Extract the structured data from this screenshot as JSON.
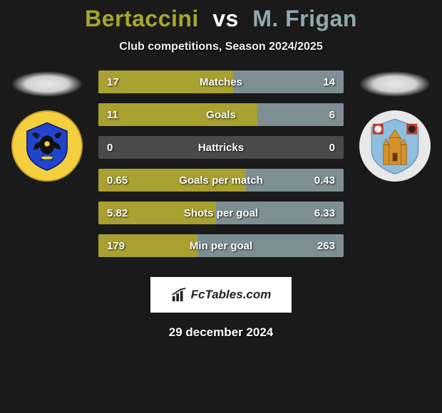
{
  "title": {
    "player1": "Bertaccini",
    "vs": "vs",
    "player2": "M. Frigan",
    "p1_color": "#a8a62f",
    "p2_color": "#90a9ae"
  },
  "subtitle": "Club competitions, Season 2024/2025",
  "colors": {
    "bar_left": "#a8a030",
    "bar_right": "#7d8f93",
    "bar_bg": "#4a4a4a",
    "page_bg": "#1a1a1a"
  },
  "crest_left": {
    "bg": "#f4d03f",
    "shield": "#2244cc",
    "accent": "#f4d03f"
  },
  "crest_right": {
    "bg": "#e8e8e8",
    "sky": "#8fbfe0",
    "building": "#d4902a",
    "red": "#c0392b"
  },
  "stats": [
    {
      "label": "Matches",
      "left_val": "17",
      "right_val": "14",
      "left_pct": 54.8,
      "right_pct": 45.2
    },
    {
      "label": "Goals",
      "left_val": "11",
      "right_val": "6",
      "left_pct": 64.7,
      "right_pct": 35.3
    },
    {
      "label": "Hattricks",
      "left_val": "0",
      "right_val": "0",
      "left_pct": 0,
      "right_pct": 0
    },
    {
      "label": "Goals per match",
      "left_val": "0.65",
      "right_val": "0.43",
      "left_pct": 60.2,
      "right_pct": 39.8
    },
    {
      "label": "Shots per goal",
      "left_val": "5.82",
      "right_val": "6.33",
      "left_pct": 47.9,
      "right_pct": 52.1
    },
    {
      "label": "Min per goal",
      "left_val": "179",
      "right_val": "263",
      "left_pct": 40.5,
      "right_pct": 59.5
    }
  ],
  "footer": {
    "brand": "FcTables.com",
    "date": "29 december 2024"
  }
}
